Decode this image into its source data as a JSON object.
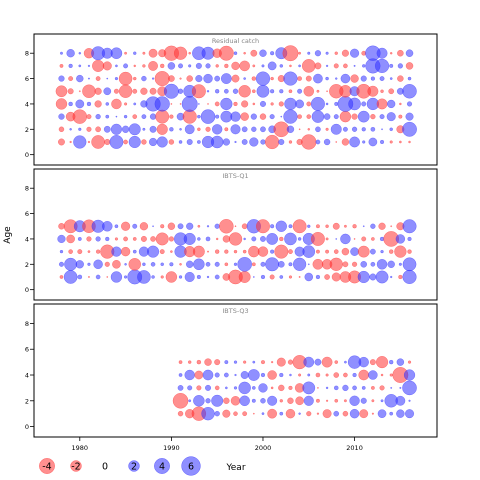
{
  "chart_data": {
    "type": "scatter",
    "subtype": "bubble-residuals",
    "ylabel": "Age",
    "xlabel": "Year",
    "x_ticks": [
      1980,
      1990,
      2000,
      2010
    ],
    "y_ticks": [
      0,
      2,
      4,
      6,
      8
    ],
    "xlim": [
      1975,
      2019
    ],
    "ylim": [
      -0.5,
      9.2
    ],
    "colors": {
      "positive": "#3333ff",
      "negative": "#ff3333"
    },
    "panels": [
      {
        "title": "Residual catch",
        "years": [
          1978,
          2016
        ],
        "ages": [
          1,
          2,
          3,
          4,
          5,
          6,
          7,
          8
        ],
        "seed": 11
      },
      {
        "title": "IBTS-Q1",
        "years": [
          1978,
          2016
        ],
        "ages": [
          1,
          2,
          3,
          4,
          5
        ],
        "seed": 29
      },
      {
        "title": "IBTS-Q3",
        "years": [
          1991,
          2016
        ],
        "ages": [
          1,
          2,
          3,
          4,
          5
        ],
        "seed": 47
      }
    ],
    "legend": {
      "values": [
        -4,
        -2,
        0,
        2,
        4,
        6
      ],
      "labels": [
        "-4",
        "-2",
        "0",
        "2",
        "4",
        "6"
      ]
    }
  }
}
